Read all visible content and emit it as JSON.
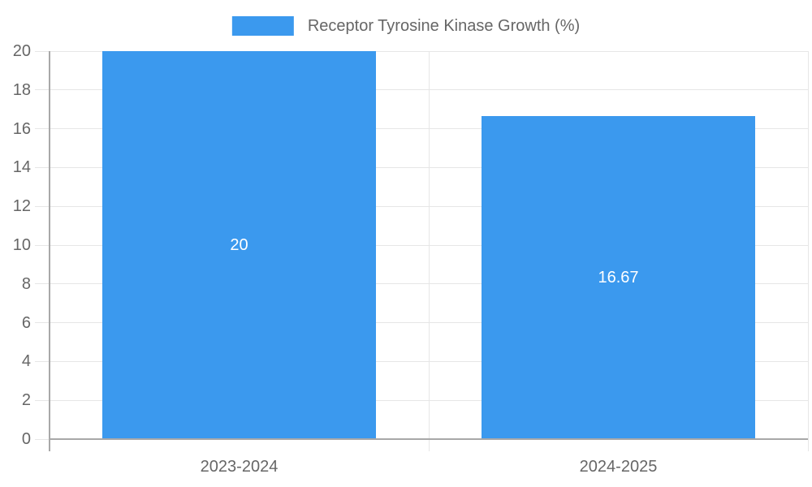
{
  "chart_data": {
    "type": "bar",
    "legend": "Receptor Tyrosine Kinase Growth (%)",
    "legend_position": "top",
    "categories": [
      "2023-2024",
      "2024-2025"
    ],
    "values": [
      20,
      16.67
    ],
    "value_labels": [
      "20",
      "16.67"
    ],
    "ylim": [
      0,
      20
    ],
    "ytick_step": 2,
    "grid": true,
    "colors": {
      "bar": "#3B99EE",
      "bar_label": "#FFFFFF",
      "axis_text": "#666666",
      "axis_line": "#A8A8A8",
      "gridline": "#E6E6E6",
      "background": "#FFFFFF"
    }
  }
}
